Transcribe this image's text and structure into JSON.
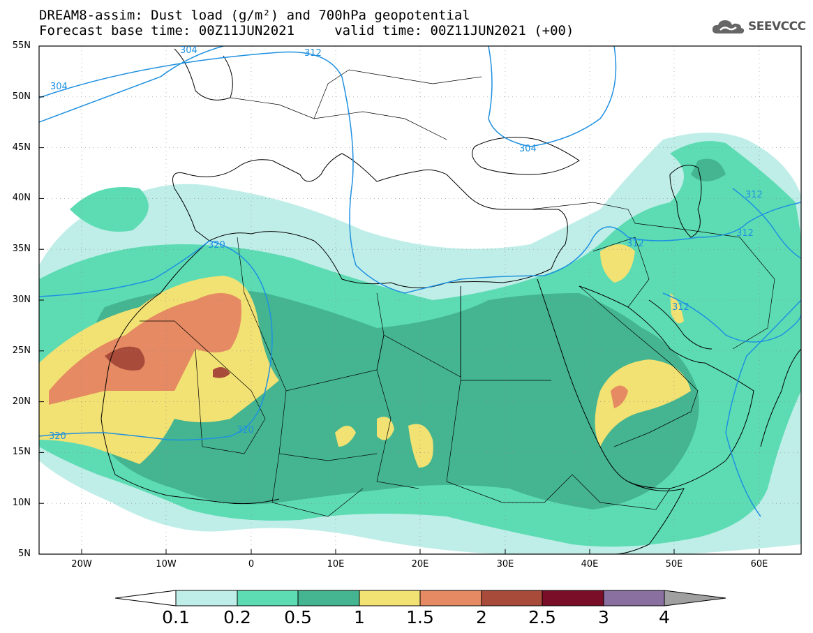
{
  "header": {
    "title_line1": "DREAM8-assim: Dust load (g/m²) and 700hPa geopotential",
    "title_line2": "Forecast base time: 00Z11JUN2021     valid time: 00Z11JUN2021 (+00)",
    "logo_text": "SEEVCCC",
    "logo_icon": "cloud-icon"
  },
  "axes": {
    "y_labels": [
      "55N",
      "50N",
      "45N",
      "40N",
      "35N",
      "30N",
      "25N",
      "20N",
      "15N",
      "10N",
      "5N"
    ],
    "x_labels": [
      "20W",
      "10W",
      "0",
      "10E",
      "20E",
      "30E",
      "40E",
      "50E",
      "60E"
    ]
  },
  "contours": {
    "labels": [
      "304",
      "312",
      "304",
      "304",
      "312",
      "312",
      "312",
      "312",
      "320",
      "320",
      "320"
    ]
  },
  "colorbar": {
    "labels": [
      "0.1",
      "0.2",
      "0.5",
      "1",
      "1.5",
      "2",
      "2.5",
      "3",
      "4"
    ],
    "colors": [
      "#ffffff",
      "#bfeee8",
      "#5ddcb4",
      "#44b590",
      "#f2e173",
      "#e58a62",
      "#a84b3a",
      "#7a0e28",
      "#8a6fa1",
      "#a0a0a0"
    ]
  }
}
